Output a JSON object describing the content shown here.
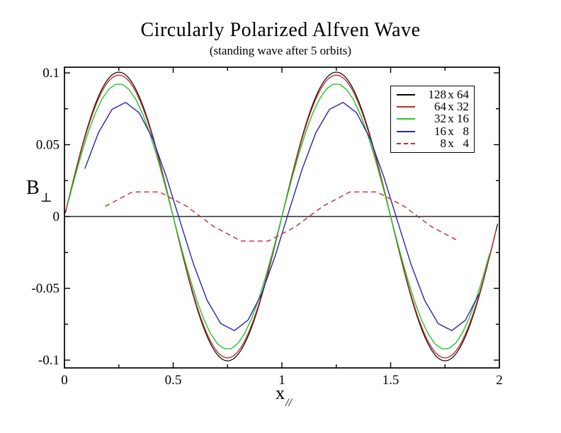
{
  "chart_data": {
    "type": "line",
    "title": "Circularly Polarized Alfven Wave",
    "subtitle": "(standing wave after 5 orbits)",
    "xlabel": {
      "base": "x",
      "sub": "//"
    },
    "ylabel": {
      "base": "B",
      "sub": "⊥"
    },
    "xlim": [
      0,
      2
    ],
    "ylim": [
      -0.1047,
      0.1039
    ],
    "grid": false,
    "zero_line": true,
    "frame": "full-box-with-inward-ticks",
    "x_major_ticks": {
      "values": [
        0,
        0.5,
        1,
        1.5,
        2
      ],
      "labels": [
        "0",
        "0.5",
        "1",
        "1.5",
        "2"
      ]
    },
    "x_minor_ticks": [
      0.25,
      0.75,
      1.25,
      1.75
    ],
    "y_major_ticks": {
      "values": [
        -0.1,
        -0.05,
        0,
        0.05,
        0.1
      ],
      "labels": [
        "-0.1",
        "-0.05",
        "0",
        "0.05",
        "0.1"
      ]
    },
    "y_minor_ticks": [
      -0.075,
      -0.025,
      0.025,
      0.075
    ],
    "model": "y = amplitude * sin(2*pi*(x - phase)); points evenly spaced from x_start to x_end",
    "series": [
      {
        "label": "128 x 64",
        "label_parts": [
          "128",
          "64"
        ],
        "color": "#000000",
        "line_width": 1.2,
        "dash": "",
        "amplitude": 0.1005,
        "phase": 0.0,
        "x_start": 0.004,
        "x_end": 1.992,
        "n_points": 257
      },
      {
        "label": "64 x 32",
        "label_parts": [
          "64",
          "32"
        ],
        "color": "#c62a2a",
        "line_width": 1.4,
        "dash": "",
        "amplitude": 0.0985,
        "phase": 0.0,
        "x_start": 0.008,
        "x_end": 1.984,
        "n_points": 129
      },
      {
        "label": "32 x 16",
        "label_parts": [
          "32",
          "16"
        ],
        "color": "#1ec828",
        "line_width": 1.4,
        "dash": "",
        "amplitude": 0.0925,
        "phase": 0.0,
        "x_start": 0.016,
        "x_end": 1.955,
        "n_points": 63
      },
      {
        "label": "16 x  8",
        "label_parts": [
          "16",
          "8"
        ],
        "color": "#2626b0",
        "line_width": 1.4,
        "dash": "",
        "amplitude": 0.0795,
        "phase": 0.025,
        "x_start": 0.09375,
        "x_end": 1.90625,
        "n_points": 30
      },
      {
        "label": "8 x  4",
        "label_parts": [
          "8",
          "4"
        ],
        "color": "#c62a2a",
        "line_width": 1.4,
        "dash": "7 5",
        "amplitude": 0.0185,
        "phase": 0.125,
        "x_start": 0.1875,
        "x_end": 1.8125,
        "n_points": 14
      }
    ],
    "legend": {
      "position": "upper-right"
    }
  }
}
